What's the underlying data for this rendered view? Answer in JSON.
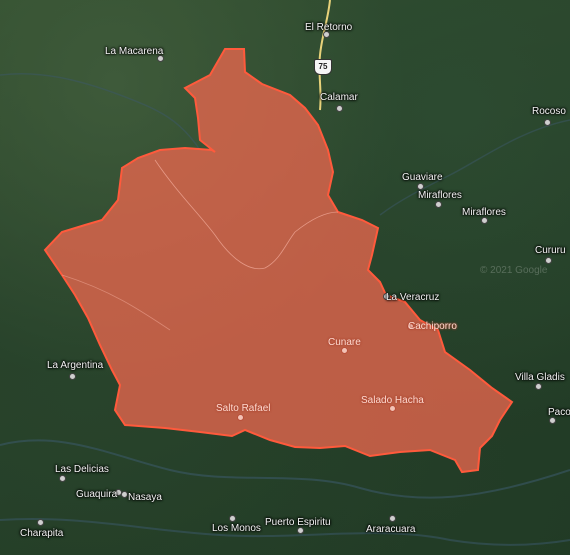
{
  "map": {
    "overlay_fill": "#e8664e",
    "overlay_stroke": "#ff5a3c",
    "route_color": "#e8d27a",
    "watermark": "© 2021 Google",
    "route_shield": "75",
    "places": [
      {
        "id": "el-retorno",
        "name": "El Retorno"
      },
      {
        "id": "la-macarena",
        "name": "La Macarena"
      },
      {
        "id": "calamar",
        "name": "Calamar"
      },
      {
        "id": "rocoso",
        "name": "Rocoso"
      },
      {
        "id": "guaviare",
        "name": "Guaviare"
      },
      {
        "id": "miraflores-1",
        "name": "Miraflores"
      },
      {
        "id": "miraflores-2",
        "name": "Miraflores"
      },
      {
        "id": "cururu",
        "name": "Cururu"
      },
      {
        "id": "la-veracruz",
        "name": "La Veracruz"
      },
      {
        "id": "cachiporro",
        "name": "Cachiporro"
      },
      {
        "id": "cunare",
        "name": "Cunare"
      },
      {
        "id": "la-argentina",
        "name": "La Argentina"
      },
      {
        "id": "villa-gladis",
        "name": "Villa Gladis"
      },
      {
        "id": "salto-rafael",
        "name": "Salto Rafael"
      },
      {
        "id": "salado-hacha",
        "name": "Salado Hacha"
      },
      {
        "id": "pacoa",
        "name": "Pacoa"
      },
      {
        "id": "las-delicias",
        "name": "Las Delicias"
      },
      {
        "id": "guaquira",
        "name": "Guaquira"
      },
      {
        "id": "nasaya",
        "name": "Nasaya"
      },
      {
        "id": "charapita",
        "name": "Charapita"
      },
      {
        "id": "los-monos",
        "name": "Los Monos"
      },
      {
        "id": "puerto-espiritu",
        "name": "Puerto Espiritu"
      },
      {
        "id": "araracuara",
        "name": "Araracuara"
      }
    ]
  }
}
